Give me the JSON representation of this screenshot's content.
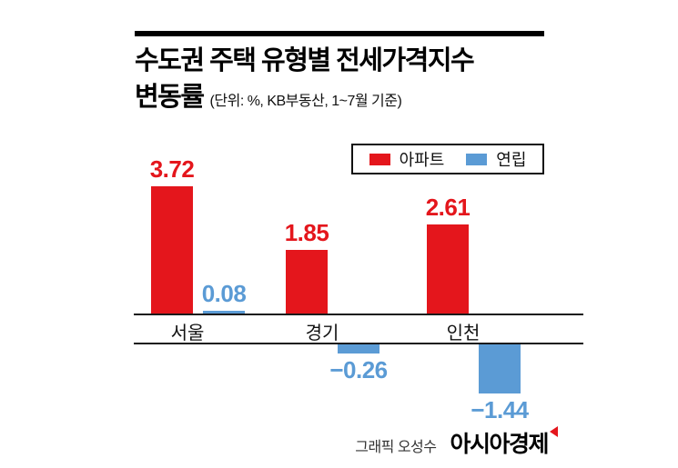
{
  "header": {
    "title_line1": "수도권 주택 유형별 전세가격지수",
    "title_line2": "변동률",
    "subtitle": "(단위: %, KB부동산, 1~7월 기준)"
  },
  "legend": {
    "position": "top-right",
    "items": [
      {
        "label": "아파트",
        "color": "#e4161c"
      },
      {
        "label": "연립",
        "color": "#5b9bd5"
      }
    ]
  },
  "chart_data": {
    "type": "bar",
    "title": "수도권 주택 유형별 전세가격지수 변동률",
    "unit": "%",
    "period_note": "KB부동산, 1~7월 기준",
    "categories": [
      "서울",
      "경기",
      "인천"
    ],
    "series": [
      {
        "name": "아파트",
        "color": "#e4161c",
        "values": [
          3.72,
          1.85,
          2.61
        ]
      },
      {
        "name": "연립",
        "color": "#5b9bd5",
        "values": [
          0.08,
          -0.26,
          -1.44
        ]
      }
    ],
    "value_labels": true,
    "grid": false,
    "legend_position": "top-right"
  },
  "footer": {
    "credit": "그래픽 오성수",
    "logo": "아시아경제"
  }
}
